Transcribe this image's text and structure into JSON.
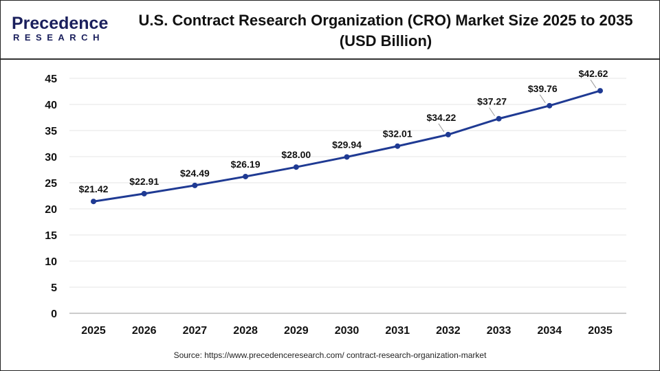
{
  "logo": {
    "line1": "Precedence",
    "line2": "RESEARCH"
  },
  "source": "Source: https://www.precedenceresearch.com/ contract-research-organization-market",
  "chart_data": {
    "type": "line",
    "title": "U.S. Contract Research Organization (CRO) Market Size 2025 to 2035 (USD Billion)",
    "title_line1": "U.S. Contract Research Organization (CRO) Market Size 2025 to 2035",
    "title_line2": "(USD Billion)",
    "categories": [
      "2025",
      "2026",
      "2027",
      "2028",
      "2029",
      "2030",
      "2031",
      "2032",
      "2033",
      "2034",
      "2035"
    ],
    "values": [
      21.42,
      22.91,
      24.49,
      26.19,
      28.0,
      29.94,
      32.01,
      34.22,
      37.27,
      39.76,
      42.62
    ],
    "data_labels": [
      "$21.42",
      "$22.91",
      "$24.49",
      "$26.19",
      "$28.00",
      "$29.94",
      "$32.01",
      "$34.22",
      "$37.27",
      "$39.76",
      "$42.62"
    ],
    "yticks": [
      0,
      5,
      10,
      15,
      20,
      25,
      30,
      35,
      40,
      45
    ],
    "ylim": [
      0,
      45
    ],
    "grid": true,
    "line_color": "#1f3a93"
  }
}
